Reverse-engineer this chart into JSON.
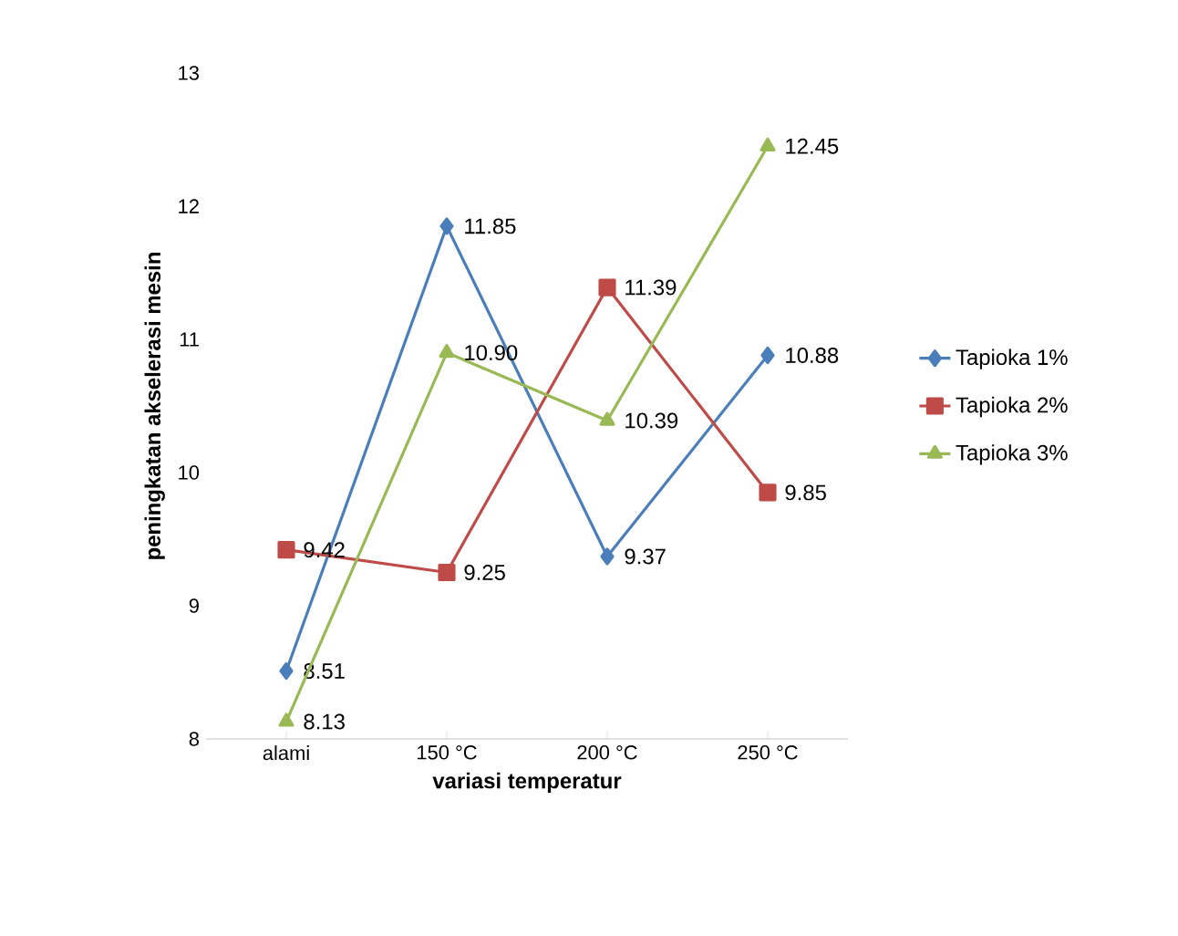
{
  "chart_data": {
    "type": "line",
    "xlabel": "variasi temperatur",
    "ylabel": "peningkatan akselerasi mesin",
    "categories": [
      "alami",
      "150 °C",
      "200 °C",
      "250 °C"
    ],
    "series": [
      {
        "name": "Tapioka 1%",
        "color": "#4a7ebb",
        "marker": "diamond",
        "values": [
          8.51,
          11.85,
          9.37,
          10.88
        ],
        "value_labels": [
          "8.51",
          "11.85",
          "9.37",
          "10.88"
        ]
      },
      {
        "name": "Tapioka 2%",
        "color": "#be4b48",
        "marker": "square",
        "values": [
          9.42,
          9.25,
          11.39,
          9.85
        ],
        "value_labels": [
          "9.42",
          "9.25",
          "11.39",
          "9.85"
        ]
      },
      {
        "name": "Tapioka 3%",
        "color": "#98b954",
        "marker": "triangle",
        "values": [
          8.13,
          10.9,
          10.39,
          12.45
        ],
        "value_labels": [
          "8.13",
          "10.90",
          "10.39",
          "12.45"
        ]
      }
    ],
    "ylim": [
      8,
      13
    ],
    "yticks": [
      8,
      9,
      10,
      11,
      12,
      13
    ],
    "grid": false,
    "legend": "right"
  }
}
